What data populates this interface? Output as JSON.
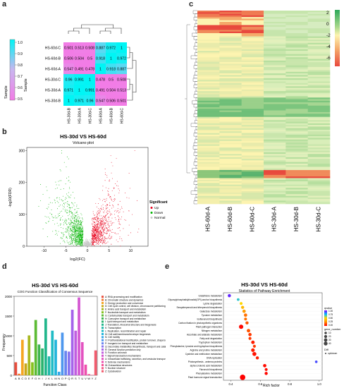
{
  "panels": {
    "a": "a",
    "b": "b",
    "c": "c",
    "d": "d",
    "e": "e"
  },
  "panel_a": {
    "colorbar_ticks": [
      "1.0",
      "0.9",
      "0.8",
      "0.7",
      "0.6",
      "0.5"
    ],
    "colorbar_label": "Sample",
    "row_label": "Sample",
    "samples": [
      "HS-60d-C",
      "HS-60d-B",
      "HS-60d-A",
      "HS-30d-C",
      "HS-30d-A",
      "HS-30d-B"
    ],
    "col_samples": [
      "HS-30d-B",
      "HS-30d-A",
      "HS-30d-C",
      "HS-60d-A",
      "HS-60d-B",
      "HS-60d-C"
    ],
    "matrix": [
      [
        "0.501",
        "0.513",
        "0.508",
        "0.887",
        "0.972",
        "1"
      ],
      [
        "0.506",
        "0.504",
        "0.5",
        "0.918",
        "1",
        "0.972"
      ],
      [
        "0.547",
        "0.491",
        "0.478",
        "1",
        "0.918",
        "0.887"
      ],
      [
        "0.96",
        "0.991",
        "1",
        "0.478",
        "0.5",
        "0.508"
      ],
      [
        "0.971",
        "1",
        "0.991",
        "0.491",
        "0.504",
        "0.513"
      ],
      [
        "1",
        "0.971",
        "0.96",
        "0.547",
        "0.506",
        "0.501"
      ]
    ],
    "colors": {
      "high": "#00f5f5",
      "low": "#f27ce6",
      "mid": "#c9b6f0"
    }
  },
  "panel_b": {
    "title": "HS-30d VS HS-60d",
    "subtitle": "Volcano plot",
    "xlabel": "log2(FC)",
    "ylabel": "-log10(FDR)",
    "x_ticks": [
      "-10",
      "-5",
      "0",
      "5",
      "10"
    ],
    "y_ticks": [
      "300",
      "200",
      "100",
      "0"
    ],
    "legend_title": "Significant",
    "legend": [
      {
        "label": "Up",
        "color": "#e8001c"
      },
      {
        "label": "Down",
        "color": "#00b300"
      },
      {
        "label": "Normal",
        "color": "#c8c8c8"
      }
    ]
  },
  "panel_c": {
    "colorbar_ticks": [
      "2",
      "0",
      "-2",
      "-4",
      "-6"
    ],
    "col_labels": [
      "HS-60d-A",
      "HS-60d-B",
      "HS-60d-C",
      "HS-30d-A",
      "HS-30d-B",
      "HS-30d-C"
    ],
    "colors": {
      "high": "#2ca85a",
      "mid": "#fdf4b0",
      "low": "#e8493d"
    }
  },
  "panel_d": {
    "chart_data": {
      "type": "bar",
      "title": "HS-30d VS HS-60d",
      "subtitle": "COG Function Classification of Consensus Sequence",
      "xlabel": "Function Class",
      "ylabel": "Frequency",
      "ylim": [
        0,
        2000
      ],
      "y_ticks": [
        "2000",
        "1500",
        "1000",
        "500",
        "0"
      ],
      "categories": [
        "A",
        "B",
        "C",
        "D",
        "E",
        "F",
        "G",
        "H",
        "I",
        "J",
        "K",
        "L",
        "M",
        "N",
        "O",
        "P",
        "Q",
        "R",
        "S",
        "T",
        "U",
        "V",
        "W",
        "Y",
        "Z"
      ],
      "values": [
        330,
        40,
        900,
        300,
        1010,
        330,
        1400,
        780,
        680,
        1440,
        480,
        1130,
        900,
        90,
        1080,
        620,
        600,
        1660,
        1130,
        1970,
        840,
        270,
        30,
        10,
        630
      ],
      "colors": [
        "#e74c3c",
        "#f27b34",
        "#f5a623",
        "#c8a818",
        "#a8b820",
        "#86c21e",
        "#5dbb35",
        "#40b550",
        "#2ab36e",
        "#22b68c",
        "#20b8a8",
        "#20bbc6",
        "#22b5dc",
        "#34a8e8",
        "#4e97ee",
        "#6a85f0",
        "#8874ef",
        "#a563ea",
        "#c05ce0",
        "#d457d2",
        "#e352c0",
        "#ee50ad",
        "#f45098",
        "#f55583",
        "#f25c6e"
      ],
      "legend": [
        "A: RNA processing and modification",
        "B: Chromatin structure and dynamics",
        "C: Energy production and conversion",
        "D: Cell cycle control, cell division, chromosome partitioning",
        "E: Amino acid transport and metabolism",
        "F: Nucleotide transport and metabolism",
        "G: Carbohydrate transport and metabolism",
        "H: Coenzyme transport and metabolism",
        "I: Lipid transport and metabolism",
        "J: Translation, ribosomal structure and biogenesis",
        "K: Transcription",
        "L: Replication, recombination and repair",
        "M: Cell wall/membrane/envelope biogenesis",
        "N: Cell motility",
        "O: Posttranslational modification, protein turnover, chaperones",
        "P: Inorganic ion transport and metabolism",
        "Q: Secondary metabolites biosynthesis, transport and catabolism",
        "R: General function prediction only",
        "S: Function unknown",
        "T: Signal transduction mechanisms",
        "U: Intracellular trafficking, secretion, and vesicular transport",
        "V: Defense mechanisms",
        "W: Extracellular structures",
        "Y: Nuclear structure",
        "Z: Cytoskeleton"
      ]
    }
  },
  "panel_e": {
    "chart_data": {
      "type": "scatter",
      "title": "HS-30d VS HS-60d",
      "subtitle": "Statistics of Pathway Enrichment",
      "xlabel": "Rich factor",
      "x_ticks": [
        "0.4",
        "0.6",
        "0.8",
        "1.0"
      ],
      "xlim": [
        0.35,
        1.02
      ],
      "pathways": [
        "Glutathione metabolism",
        "Glycosylphosphatidylinositol(GPI)-anchor biosynthesis",
        "Lysine degradation",
        "Sesquiterpenoid and triterpenoid biosynthesis",
        "Galactose metabolism",
        "Tyrosine metabolism",
        "Isoflavonoid biosynthesis",
        "Carbon fixation in photosynthetic organisms",
        "Plant-pathogen interaction",
        "Nitrogen metabolism",
        "Ascorbate and aldarate metabolism",
        "Fatty acid degradation",
        "Tryptophan metabolism",
        "Phenylalanine, tyrosine and tryptophan biosynthesis",
        "Arginine and proline metabolism",
        "Cysteine and methionine metabolism",
        "DNA replication",
        "Photosynthesis - antenna proteins",
        "alpha-Linolenic acid metabolism",
        "Flavonoid biosynthesis",
        "Phenylalanine metabolism",
        "Plant hormone signal transduction"
      ],
      "x": [
        0.39,
        0.45,
        0.47,
        0.48,
        0.49,
        0.5,
        0.5,
        0.51,
        0.47,
        0.52,
        0.53,
        0.53,
        0.55,
        0.56,
        0.55,
        0.56,
        0.58,
        0.98,
        0.63,
        0.64,
        0.64,
        0.48
      ],
      "gene_number": [
        10,
        6,
        8,
        10,
        12,
        12,
        8,
        10,
        25,
        14,
        12,
        8,
        14,
        8,
        16,
        20,
        10,
        5,
        12,
        8,
        10,
        45
      ],
      "qvalue": [
        0.95,
        0.7,
        0.5,
        0.4,
        0.3,
        0.2,
        0.2,
        0.15,
        0.01,
        0.15,
        0.1,
        0.1,
        0.05,
        0.1,
        0.05,
        0.03,
        0.05,
        0.9,
        0.02,
        0.02,
        0.01,
        0.001
      ],
      "legend_qvalue_title": "qvalue",
      "legend_qvalue_ticks": [
        "1.00",
        "0.75",
        "0.50",
        "0.25",
        "0.00"
      ],
      "legend_gene_title": "gene_number",
      "legend_gene_ticks": [
        "10",
        "20",
        "30",
        "40"
      ],
      "legend_diff_title": "Diff",
      "legend_diff_label": "up&down"
    }
  }
}
